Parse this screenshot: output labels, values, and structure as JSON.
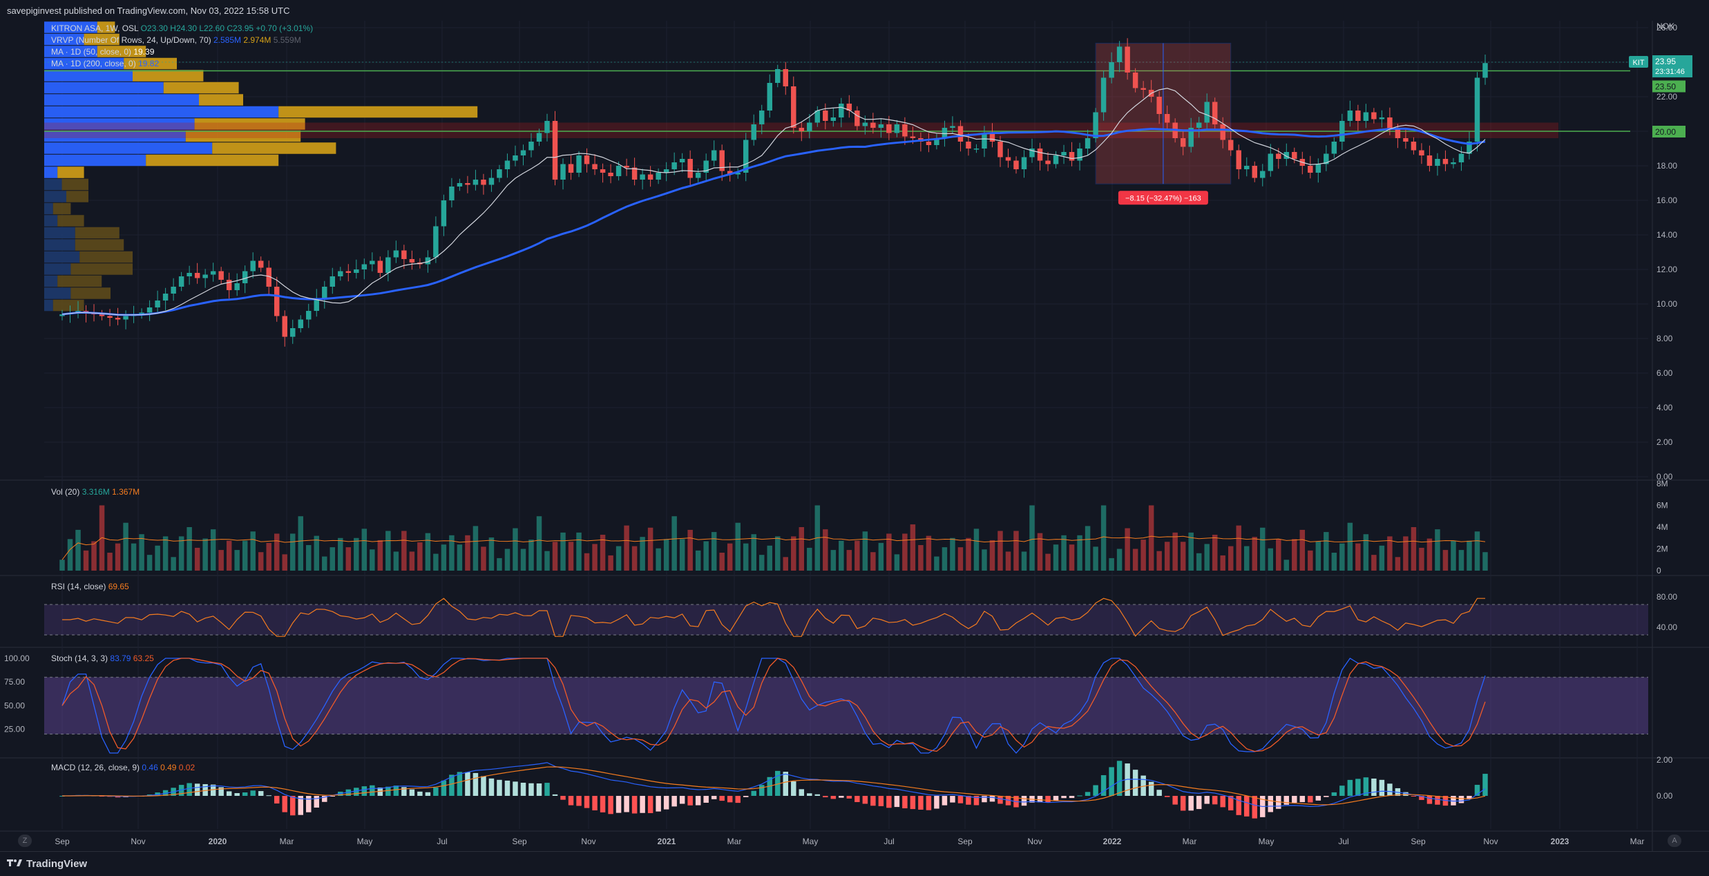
{
  "header": {
    "published": "savepiginvest published on TradingView.com, Nov 03, 2022 15:58 UTC"
  },
  "footer": {
    "logo": "TradingView",
    "z_button": "Z",
    "a_button": "A"
  },
  "chart_data": {
    "type": "candlestick",
    "symbol_line": {
      "name": "KITRON ASA, 1W, OSL",
      "o": "O23.30",
      "h": "H24.30",
      "l": "L22.60",
      "c": "C23.95",
      "chg": "+0.70 (+3.01%)"
    },
    "legend_lines": [
      {
        "label": "VRVP (Number Of Rows, 24, Up/Down, 70)",
        "v1": "2.585M",
        "v2": "2.974M",
        "v3": "5.559M"
      },
      {
        "label": "MA · 1D (50, close, 0)",
        "v1": "19.39"
      },
      {
        "label": "MA · 1D (200, close, 0)",
        "v1": "19.82"
      }
    ],
    "currency": "NOK",
    "price_ticks": [
      "26.00",
      "24.00",
      "22.00",
      "20.00",
      "18.00",
      "16.00",
      "14.00",
      "12.00",
      "10.00",
      "8.00",
      "6.00",
      "4.00",
      "2.00",
      "0.00"
    ],
    "price_ylim": [
      0,
      26
    ],
    "price_tags": {
      "symbol": "KIT",
      "last": "23.95",
      "countdown": "23:31:46",
      "level1": "23.50",
      "level2": "20.00"
    },
    "horizontal_lines": [
      23.5,
      20.0
    ],
    "measure": {
      "label": "−8.15 (−32.47%) −163",
      "from_price": 25.1,
      "to_price": 16.95
    },
    "x_ticks": [
      "Sep",
      "Nov",
      "2020",
      "Mar",
      "May",
      "Jul",
      "Sep",
      "Nov",
      "2021",
      "Mar",
      "May",
      "Jul",
      "Sep",
      "Nov",
      "2022",
      "Mar",
      "May",
      "Jul",
      "Sep",
      "Nov",
      "2023",
      "Mar"
    ],
    "weekly_close": [
      9.4,
      9.5,
      9.6,
      9.5,
      9.4,
      9.3,
      9.2,
      9.1,
      9.3,
      9.4,
      9.5,
      9.8,
      10.2,
      10.6,
      11.0,
      11.6,
      11.8,
      11.5,
      11.7,
      11.9,
      11.4,
      10.8,
      11.2,
      11.9,
      12.5,
      12.1,
      11.0,
      9.3,
      8.1,
      8.6,
      9.1,
      9.6,
      10.3,
      11.0,
      11.6,
      11.9,
      11.8,
      12.0,
      12.3,
      12.5,
      11.8,
      12.7,
      13.1,
      12.6,
      12.4,
      12.3,
      12.7,
      14.5,
      16.0,
      16.8,
      17.0,
      16.9,
      17.2,
      16.9,
      17.3,
      17.8,
      18.3,
      18.6,
      18.9,
      19.4,
      19.9,
      20.6,
      17.2,
      18.1,
      17.6,
      18.6,
      18.1,
      17.8,
      17.6,
      17.4,
      18.0,
      17.9,
      17.2,
      17.5,
      17.2,
      17.6,
      17.8,
      18.2,
      18.4,
      17.3,
      17.6,
      18.3,
      18.9,
      17.7,
      17.5,
      17.6,
      19.5,
      20.4,
      21.2,
      22.8,
      23.6,
      22.6,
      20.2,
      20.0,
      20.5,
      21.2,
      20.6,
      20.8,
      21.6,
      21.2,
      20.3,
      20.5,
      20.2,
      20.4,
      19.9,
      20.4,
      19.7,
      19.6,
      19.4,
      19.2,
      19.6,
      20.2,
      20.3,
      19.4,
      19.0,
      19.0,
      19.9,
      19.4,
      18.5,
      18.3,
      17.8,
      18.5,
      19.0,
      18.3,
      18.1,
      18.6,
      18.8,
      18.3,
      19.0,
      19.6,
      21.1,
      23.1,
      24.0,
      24.9,
      23.4,
      22.5,
      22.4,
      22.0,
      21.0,
      20.5,
      19.6,
      19.1,
      20.2,
      20.5,
      21.7,
      20.4,
      19.5,
      18.9,
      17.8,
      18.0,
      17.3,
      17.7,
      18.7,
      18.4,
      18.8,
      18.4,
      18.0,
      17.6,
      18.1,
      18.7,
      19.4,
      20.6,
      21.2,
      20.6,
      21.1,
      20.7,
      20.8,
      20.1,
      19.6,
      19.4,
      18.9,
      18.6,
      18.0,
      18.4,
      18.1,
      18.2,
      18.7,
      19.4,
      23.1,
      23.95
    ],
    "vrvp": {
      "up": [
        0.12,
        0.09,
        0.12,
        0.18,
        0.2,
        0.27,
        0.35,
        0.53,
        0.34,
        0.32,
        0.38,
        0.23,
        0.03,
        0.04,
        0.05,
        0.02,
        0.03,
        0.07,
        0.07,
        0.08,
        0.06,
        0.03,
        0.06,
        0.02
      ],
      "down": [
        0.04,
        0.08,
        0.11,
        0.12,
        0.16,
        0.17,
        0.1,
        0.45,
        0.25,
        0.26,
        0.28,
        0.3,
        0.06,
        0.06,
        0.05,
        0.04,
        0.06,
        0.1,
        0.11,
        0.12,
        0.14,
        0.1,
        0.09,
        0.07
      ],
      "row_prices": [
        26.0,
        25.3,
        24.6,
        23.9,
        23.2,
        22.5,
        21.8,
        21.1,
        20.4,
        19.7,
        19.0,
        18.3,
        17.6,
        16.9,
        16.2,
        15.5,
        14.8,
        14.1,
        13.4,
        12.7,
        12.0,
        11.3,
        10.6,
        9.9
      ]
    },
    "volume": {
      "label": "Vol (20)",
      "v1": "3.316M",
      "v2": "1.367M",
      "ticks": [
        "8M",
        "6M",
        "4M",
        "2M",
        "0"
      ],
      "ylim": [
        0,
        8
      ]
    },
    "rsi": {
      "label": "RSI (14, close)",
      "value": "69.65",
      "ticks": [
        "80.00",
        "40.00"
      ],
      "upper": 70,
      "lower": 30
    },
    "stoch": {
      "label": "Stoch (14, 3, 3)",
      "k": "83.79",
      "d": "63.25",
      "ticks": [
        "100.00",
        "75.00",
        "50.00",
        "25.00"
      ],
      "upper": 80,
      "lower": 20
    },
    "macd": {
      "label": "MACD (12, 26, close, 9)",
      "v1": "0.46",
      "v2": "0.49",
      "v3": "0.02",
      "ticks": [
        "2.00",
        "0.00"
      ]
    },
    "colors": {
      "up": "#26a69a",
      "down": "#ef5350",
      "up_dim": "#1e6b63",
      "down_dim": "#8b2e33",
      "ma50": "#d1d4dc",
      "ma200": "#2962ff",
      "vrvp_up": "#2962ff",
      "vrvp_down": "#d4a017",
      "rsi": "#f57c1f",
      "stoch_k": "#2962ff",
      "stoch_d": "#f05a28",
      "band": "#7e57c2",
      "green_line": "#4caf50"
    }
  }
}
